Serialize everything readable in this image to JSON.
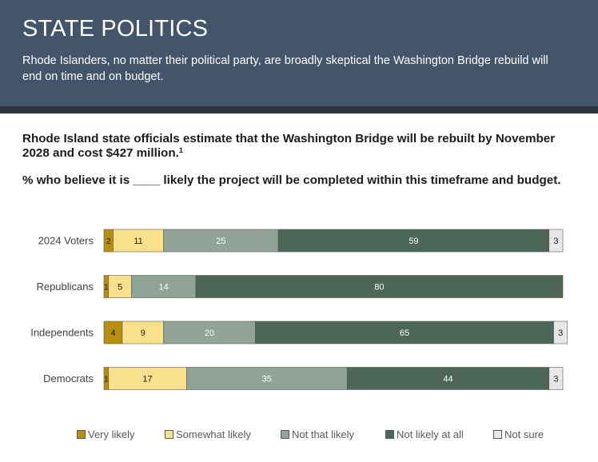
{
  "header": {
    "title": "STATE POLITICS",
    "subtitle": "Rhode Islanders, no matter their political party, are broadly skeptical the Washington Bridge rebuild will end on time and on budget."
  },
  "question": {
    "line1": "Rhode Island state officials estimate that the Washington Bridge will be rebuilt by November 2028 and cost $427 million.",
    "footnote_mark": "1",
    "line2": "% who believe it is ____ likely the project will be completed within this timeframe and budget."
  },
  "colors": {
    "very_likely": "#b8900e",
    "somewhat_likely": "#f9e08c",
    "not_that_likely": "#8fa396",
    "not_likely_at_all": "#4c6757",
    "not_sure": "#e7e7e7"
  },
  "chart_data": {
    "type": "bar",
    "orientation": "horizontal",
    "stacked": true,
    "percent_scale": true,
    "categories": [
      "2024 Voters",
      "Republicans",
      "Independents",
      "Democrats"
    ],
    "series": [
      {
        "name": "Very likely",
        "color_key": "very_likely",
        "values": [
          2,
          1,
          4,
          1
        ]
      },
      {
        "name": "Somewhat likely",
        "color_key": "somewhat_likely",
        "values": [
          11,
          5,
          9,
          17
        ]
      },
      {
        "name": "Not that likely",
        "color_key": "not_that_likely",
        "values": [
          25,
          14,
          20,
          35
        ]
      },
      {
        "name": "Not likely at all",
        "color_key": "not_likely_at_all",
        "values": [
          59,
          80,
          65,
          44
        ]
      },
      {
        "name": "Not sure",
        "color_key": "not_sure",
        "values": [
          3,
          0,
          3,
          3
        ]
      }
    ],
    "legend_position": "bottom",
    "grid": false,
    "xlim": [
      0,
      100
    ]
  }
}
